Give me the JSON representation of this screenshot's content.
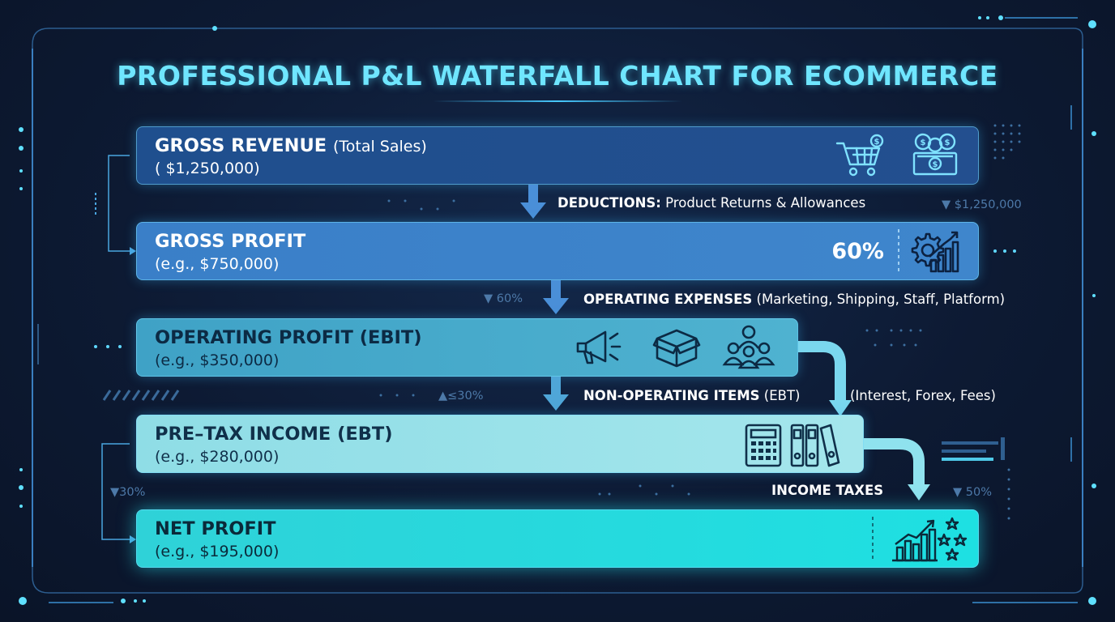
{
  "title": "PROFESSIONAL P&L WATERFALL CHART FOR ECOMMERCE",
  "bars": {
    "gross_revenue": {
      "label": "GROSS REVENUE",
      "sub": "(Total Sales)",
      "value": "( $1,250,000)"
    },
    "gross_profit": {
      "label": "GROSS PROFIT",
      "value": "(e.g., $750,000)",
      "percent": "60%"
    },
    "operating_profit": {
      "label": "OPERATING PROFIT (EBIT)",
      "value": "(e.g., $350,000)"
    },
    "pretax_income": {
      "label": "PRE–TAX INCOME (EBT)",
      "value": "(e.g., $280,000)"
    },
    "net_profit": {
      "label": "NET PROFIT",
      "value": "(e.g., $195,000)"
    }
  },
  "steps": {
    "deductions": {
      "label": "DEDUCTIONS:",
      "detail": "Product Returns & Allowances"
    },
    "operating_expenses": {
      "label": "OPERATING EXPENSES",
      "detail": "(Marketing, Shipping, Staff, Platform)"
    },
    "non_operating": {
      "label": "NON-OPERATING ITEMS",
      "detail": "(EBT)",
      "extra": "(Interest, Forex, Fees)"
    },
    "income_taxes": {
      "label": "INCOME TAXES"
    }
  },
  "side_annotations": {
    "revenue_marker": "▼ $1,250,000",
    "gross_pct": "▼ 60%",
    "operating_pct": "▲≤30%",
    "pretax_pct": "▼30%",
    "tax_pct": "▼ 50%"
  },
  "colors": {
    "title": "#6fe6ff",
    "bar_gross_revenue": "#1f4f8e",
    "bar_gross_profit": "#3a7fc8",
    "bar_operating": "#4fb2d0",
    "bar_pretax": "#a4e6ec",
    "bar_net": "#1ee0e2",
    "arrow": "#4a8fd8"
  },
  "icons": [
    "shopping-cart-icon",
    "money-stack-icon",
    "gear-growth-icon",
    "megaphone-icon",
    "box-icon",
    "team-icon",
    "calculator-icon",
    "binders-icon",
    "growth-stars-icon"
  ]
}
